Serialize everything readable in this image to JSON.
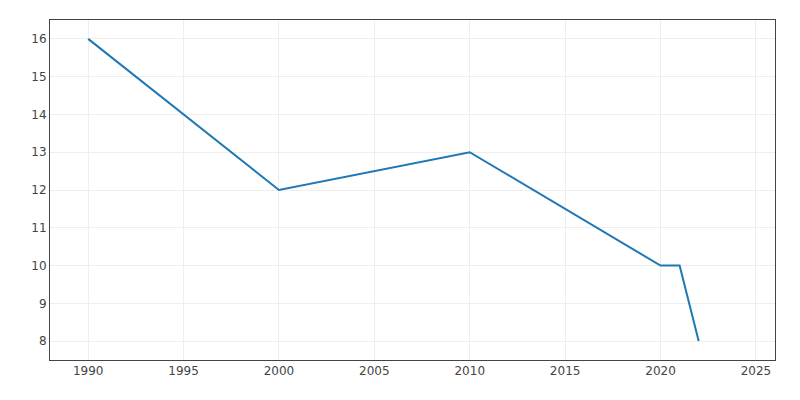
{
  "chart_data": {
    "type": "line",
    "x": [
      1990,
      2000,
      2010,
      2020,
      2021,
      2022
    ],
    "values": [
      16,
      12,
      13,
      10,
      10,
      8
    ],
    "xlim": [
      1988,
      2026
    ],
    "ylim": [
      7.5,
      16.5
    ],
    "xticks": [
      1990,
      1995,
      2000,
      2005,
      2010,
      2015,
      2020,
      2025
    ],
    "yticks": [
      8,
      9,
      10,
      11,
      12,
      13,
      14,
      15,
      16
    ],
    "grid": true
  }
}
